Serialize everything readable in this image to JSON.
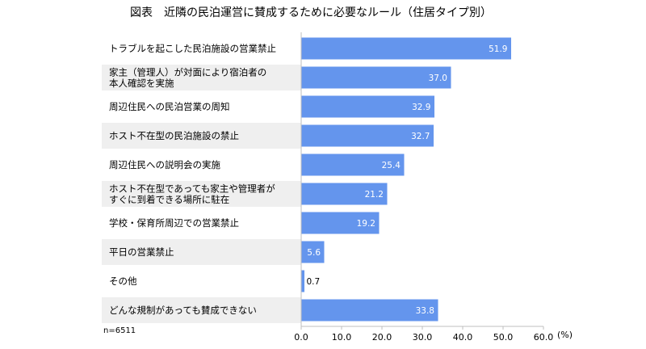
{
  "chart_data": {
    "type": "bar",
    "orientation": "horizontal",
    "title": "図表　近隣の民泊運営に賛成するために必要なルール（住居タイプ別）",
    "categories": [
      [
        "トラブルを起こした民泊施設の営業禁止"
      ],
      [
        "家主（管理人）が対面により宿泊者の",
        "本人確認を実施"
      ],
      [
        "周辺住民への民泊営業の周知"
      ],
      [
        "ホスト不在型の民泊施設の禁止"
      ],
      [
        "周辺住民への説明会の実施"
      ],
      [
        "ホスト不在型であっても家主や管理者が",
        "すぐに到着できる場所に駐在"
      ],
      [
        "学校・保育所周辺での営業禁止"
      ],
      [
        "平日の営業禁止"
      ],
      [
        "その他"
      ],
      [
        "どんな規制があっても賛成できない"
      ]
    ],
    "values": [
      51.9,
      37.0,
      32.9,
      32.7,
      25.4,
      21.2,
      19.2,
      5.6,
      0.7,
      33.8
    ],
    "value_labels": [
      "51.9",
      "37.0",
      "32.9",
      "32.7",
      "25.4",
      "21.2",
      "19.2",
      "5.6",
      "0.7",
      "33.8"
    ],
    "xlim": [
      0,
      60
    ],
    "xticks": [
      "0.0",
      "10.0",
      "20.0",
      "30.0",
      "40.0",
      "50.0",
      "60.0"
    ],
    "unit": "(%)",
    "note": "n=6511",
    "grid": false,
    "legend": "none",
    "colors": {
      "bar": "#6495ED",
      "label_band": "#EFEFEF",
      "axis": "#BFBFBF"
    }
  }
}
